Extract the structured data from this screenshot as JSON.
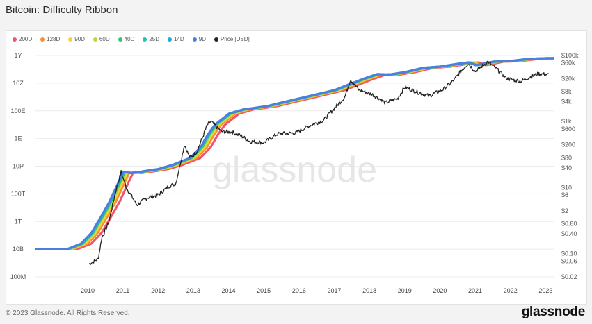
{
  "header": {
    "title": "Bitcoin: Difficulty Ribbon"
  },
  "footer": {
    "copyright": "© 2023 Glassnode. All Rights Reserved.",
    "brand": "glassnode"
  },
  "watermark": "glassnode",
  "chart_data": {
    "type": "line",
    "title": "Bitcoin: Difficulty Ribbon",
    "legend_position": "top-left",
    "grid": true,
    "x_ticks": [
      "2010",
      "2011",
      "2012",
      "2013",
      "2014",
      "2015",
      "2016",
      "2017",
      "2018",
      "2019",
      "2020",
      "2021",
      "2022",
      "2023"
    ],
    "y_left": {
      "scale": "log",
      "ticks": [
        "1Y",
        "10Z",
        "100E",
        "1E",
        "10P",
        "100T",
        "1T",
        "10B",
        "100M"
      ],
      "tick_values": [
        1e+24,
        1e+22,
        1e+20,
        1e+18,
        1e+16,
        100000000000000.0,
        1000000000000.0,
        10000000000.0,
        100000000.0
      ],
      "range": [
        100000000.0,
        1e+24
      ]
    },
    "y_right": {
      "scale": "log",
      "ticks": [
        "$100k",
        "$60k",
        "$20k",
        "$8k",
        "$4k",
        "$1k",
        "$600",
        "$200",
        "$80",
        "$40",
        "$10",
        "$6",
        "$2",
        "$0.80",
        "$0.40",
        "$0.10",
        "$0.06",
        "$0.02"
      ],
      "tick_values": [
        100000,
        60000,
        20000,
        8000,
        4000,
        1000,
        600,
        200,
        80,
        40,
        10,
        6,
        2,
        0.8,
        0.4,
        0.1,
        0.06,
        0.02
      ]
    },
    "series": [
      {
        "name": "200D",
        "color": "#f2546b"
      },
      {
        "name": "128D",
        "color": "#f7902c"
      },
      {
        "name": "90D",
        "color": "#f7d03c"
      },
      {
        "name": "60D",
        "color": "#b5dc3b"
      },
      {
        "name": "40D",
        "color": "#34c56e"
      },
      {
        "name": "25D",
        "color": "#1fc2b0"
      },
      {
        "name": "14D",
        "color": "#2aa5d8"
      },
      {
        "name": "9D",
        "color": "#4a7fe0"
      },
      {
        "name": "Price [USD]",
        "color": "#222222"
      }
    ],
    "difficulty_estimate": {
      "x": [
        2009.0,
        2009.9,
        2010.3,
        2010.6,
        2010.9,
        2011.1,
        2011.3,
        2011.5,
        2011.7,
        2012.0,
        2012.5,
        2012.9,
        2013.1,
        2013.4,
        2013.7,
        2013.9,
        2014.1,
        2014.5,
        2014.9,
        2015.2,
        2015.6,
        2016.0,
        2016.5,
        2017.0,
        2017.5,
        2017.9,
        2018.3,
        2018.7,
        2019.0,
        2019.5,
        2020.0,
        2020.5,
        2021.0,
        2021.3,
        2021.5,
        2021.7,
        2022.0,
        2022.5,
        2023.0,
        2023.5
      ],
      "log10_y": [
        10.0,
        10.0,
        10.4,
        11.2,
        12.5,
        13.4,
        14.5,
        15.6,
        15.5,
        15.6,
        15.8,
        16.1,
        16.3,
        16.6,
        17.4,
        18.3,
        19.0,
        19.8,
        20.1,
        20.2,
        20.35,
        20.6,
        20.9,
        21.2,
        21.5,
        21.9,
        22.3,
        22.65,
        22.6,
        22.8,
        23.1,
        23.2,
        23.4,
        23.5,
        23.3,
        23.4,
        23.55,
        23.6,
        23.75,
        23.8
      ]
    },
    "price_estimate": {
      "x": [
        2010.55,
        2010.8,
        2010.9,
        2011.1,
        2011.3,
        2011.45,
        2011.6,
        2011.9,
        2012.2,
        2012.5,
        2012.8,
        2013.0,
        2013.25,
        2013.4,
        2013.6,
        2013.9,
        2014.0,
        2014.3,
        2014.6,
        2014.9,
        2015.1,
        2015.5,
        2015.9,
        2016.4,
        2016.8,
        2017.2,
        2017.5,
        2017.8,
        2017.96,
        2018.2,
        2018.6,
        2018.95,
        2019.3,
        2019.5,
        2019.9,
        2020.2,
        2020.6,
        2020.9,
        2021.1,
        2021.3,
        2021.5,
        2021.85,
        2022.1,
        2022.4,
        2022.8,
        2023.0,
        2023.3,
        2023.6
      ],
      "usd": [
        0.05,
        0.07,
        0.3,
        0.9,
        8,
        30,
        10,
        3,
        5,
        6,
        11,
        13,
        200,
        80,
        120,
        800,
        1000,
        500,
        480,
        350,
        250,
        230,
        430,
        450,
        750,
        1100,
        2500,
        5500,
        19000,
        9000,
        6500,
        3700,
        5000,
        11000,
        7500,
        6000,
        9500,
        18000,
        34000,
        58000,
        33000,
        64000,
        40000,
        20000,
        16500,
        21000,
        28000,
        26000
      ]
    }
  }
}
